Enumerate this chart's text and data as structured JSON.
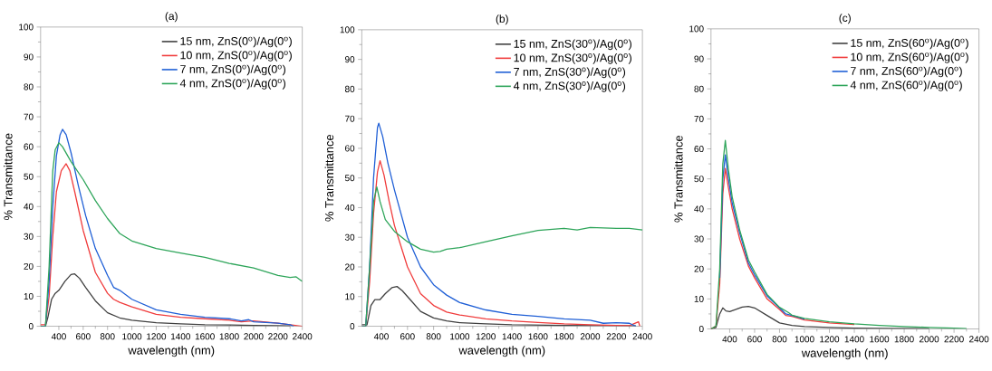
{
  "chart_data": [
    {
      "type": "line",
      "title": "(a)",
      "xlabel": "wavelength (nm)",
      "ylabel": "% Transmittance",
      "xlim": [
        250,
        2400
      ],
      "ylim": [
        0,
        100
      ],
      "xticks": [
        400,
        600,
        800,
        1000,
        1200,
        1400,
        1600,
        1800,
        2000,
        2200,
        2400
      ],
      "yticks": [
        0,
        10,
        20,
        30,
        40,
        50,
        60,
        70,
        80,
        90,
        100
      ],
      "legend": "top right",
      "series": [
        {
          "name": "15 nm, ZnS(0$^{o}$)/Ag(0$^{o}$)",
          "color": "#404040",
          "x": [
            250,
            290,
            310,
            340,
            370,
            400,
            450,
            500,
            530,
            570,
            620,
            700,
            800,
            900,
            1000,
            1200,
            1400,
            1600,
            1800,
            2000,
            2200,
            2300
          ],
          "values": [
            0,
            0,
            3,
            9,
            11,
            12,
            15,
            17.3,
            17.5,
            16,
            13,
            8.5,
            4.5,
            2.8,
            2,
            1.2,
            0.8,
            0.5,
            0.4,
            0.3,
            0.2,
            0.1
          ]
        },
        {
          "name": "10 nm, ZnS(0$^{o}$)/Ag(0$^{o}$)",
          "color": "#f03c3c",
          "x": [
            250,
            290,
            320,
            350,
            380,
            420,
            460,
            490,
            530,
            600,
            700,
            800,
            850,
            900,
            1000,
            1200,
            1400,
            1600,
            1800,
            1900,
            2000,
            2200,
            2300,
            2400
          ],
          "values": [
            0.5,
            0.5,
            10,
            30,
            45,
            52,
            54.3,
            52,
            45,
            32,
            18,
            11,
            9,
            8,
            6.5,
            4,
            3,
            2.5,
            2,
            1.5,
            1.8,
            1,
            0.5,
            0
          ]
        },
        {
          "name": "7 nm, ZnS(0$^{o}$)/Ag(0$^{o}$)",
          "color": "#1f5fd6",
          "x": [
            250,
            290,
            320,
            350,
            380,
            410,
            430,
            460,
            500,
            560,
            620,
            700,
            800,
            850,
            900,
            1000,
            1200,
            1400,
            1600,
            1800,
            1900,
            1960,
            2000,
            2200,
            2300,
            2330
          ],
          "values": [
            0,
            0,
            15,
            40,
            57,
            64,
            65.8,
            64,
            58,
            47,
            37,
            26,
            17,
            13,
            12,
            9,
            5.5,
            4,
            3,
            2.5,
            1.8,
            2.2,
            1.5,
            1,
            0.5,
            0
          ]
        },
        {
          "name": "4 nm, ZnS(0$^{o}$)/Ag(0$^{o}$)",
          "color": "#2ea55a",
          "x": [
            250,
            290,
            320,
            350,
            370,
            400,
            430,
            500,
            600,
            700,
            800,
            900,
            1000,
            1200,
            1400,
            1600,
            1800,
            2000,
            2200,
            2300,
            2350,
            2400
          ],
          "values": [
            0,
            0,
            20,
            52,
            59,
            61.3,
            60,
            55,
            49,
            42,
            36,
            31,
            28.5,
            26,
            24.5,
            23,
            21,
            19.5,
            17,
            16.3,
            16.5,
            15
          ]
        }
      ]
    },
    {
      "type": "line",
      "title": "(b)",
      "xlabel": "wavelength (nm)",
      "ylabel": "% Transmittance",
      "xlim": [
        250,
        2400
      ],
      "ylim": [
        0,
        100
      ],
      "xticks": [
        400,
        600,
        800,
        1000,
        1200,
        1400,
        1600,
        1800,
        2000,
        2200,
        2400
      ],
      "yticks": [
        0,
        10,
        20,
        30,
        40,
        50,
        60,
        70,
        80,
        90,
        100
      ],
      "legend": "top right",
      "series": [
        {
          "name": "15 nm, ZnS(30$^{o}$)/Ag(0$^{o}$)",
          "color": "#404040",
          "x": [
            250,
            290,
            320,
            350,
            390,
            430,
            480,
            520,
            560,
            620,
            700,
            800,
            900,
            1000,
            1200,
            1400,
            1800,
            2200,
            2350
          ],
          "values": [
            0.5,
            0.5,
            7,
            9,
            9,
            11,
            13,
            13.4,
            12,
            9,
            5,
            2.8,
            1.8,
            1.2,
            0.8,
            0.5,
            0.3,
            0.2,
            0.1
          ]
        },
        {
          "name": "10 nm, ZnS(30$^{o}$)/Ag(0$^{o}$)",
          "color": "#f03c3c",
          "x": [
            250,
            280,
            310,
            340,
            370,
            390,
            420,
            460,
            500,
            600,
            700,
            800,
            900,
            1000,
            1200,
            1400,
            1600,
            1800,
            2000,
            2200,
            2300,
            2370,
            2380
          ],
          "values": [
            0,
            0,
            15,
            38,
            52,
            55.8,
            51,
            42,
            34,
            20,
            11,
            7,
            4.8,
            3.8,
            2.5,
            1.8,
            1.3,
            0.8,
            0.5,
            0.3,
            0.2,
            1.5,
            0
          ]
        },
        {
          "name": "7 nm, ZnS(30$^{o}$)/Ag(0$^{o}$)",
          "color": "#1f5fd6",
          "x": [
            250,
            280,
            310,
            340,
            370,
            380,
            410,
            450,
            500,
            600,
            700,
            800,
            900,
            1000,
            1200,
            1400,
            1600,
            1800,
            2000,
            2100,
            2200,
            2300,
            2350
          ],
          "values": [
            0,
            0,
            20,
            50,
            67,
            68.5,
            64,
            55,
            46,
            30,
            20,
            14,
            10.5,
            8,
            5.5,
            4,
            3.3,
            2.5,
            2,
            1,
            1.2,
            1,
            0
          ]
        },
        {
          "name": "4 nm, ZnS(30$^{o}$)/Ag(0$^{o}$)",
          "color": "#2ea55a",
          "x": [
            250,
            280,
            310,
            340,
            365,
            390,
            430,
            500,
            600,
            700,
            800,
            850,
            900,
            1000,
            1200,
            1400,
            1600,
            1800,
            1900,
            2000,
            2200,
            2300,
            2400
          ],
          "values": [
            0,
            0,
            20,
            42,
            47,
            42,
            36,
            32,
            28.5,
            26,
            25,
            25.2,
            26,
            26.5,
            28.5,
            30.5,
            32.3,
            33,
            32.5,
            33.3,
            33,
            33,
            32.5
          ]
        }
      ]
    },
    {
      "type": "line",
      "title": "(c)",
      "xlabel": "wavelength (nm)",
      "ylabel": "% Transmittance",
      "xlim": [
        250,
        2400
      ],
      "ylim": [
        0,
        100
      ],
      "xticks": [
        400,
        600,
        800,
        1000,
        1200,
        1400,
        1600,
        1800,
        2000,
        2200,
        2400
      ],
      "yticks": [
        0,
        10,
        20,
        30,
        40,
        50,
        60,
        70,
        80,
        90,
        100
      ],
      "legend": "top right",
      "series": [
        {
          "name": "15 nm, ZnS(60$^{o}$)/Ag(0$^{o}$)",
          "color": "#404040",
          "x": [
            250,
            290,
            320,
            345,
            370,
            400,
            450,
            500,
            550,
            600,
            700,
            800,
            900,
            1000,
            1200,
            1400,
            1600,
            2000
          ],
          "values": [
            0,
            0.5,
            5,
            7,
            6,
            5.8,
            6.5,
            7.3,
            7.5,
            7,
            4.5,
            2,
            1.2,
            0.8,
            0.5,
            0.3,
            0.2,
            0.1
          ]
        },
        {
          "name": "10 nm, ZnS(60$^{o}$)/Ag(0$^{o}$)",
          "color": "#f03c3c",
          "x": [
            250,
            290,
            320,
            345,
            365,
            390,
            420,
            480,
            550,
            600,
            700,
            800,
            850,
            900,
            1000,
            1200,
            1400
          ],
          "values": [
            0,
            1,
            15,
            45,
            53.5,
            47,
            40,
            30,
            21,
            17,
            10,
            6.5,
            4.5,
            4.2,
            3,
            2,
            1.5
          ]
        },
        {
          "name": "7 nm, ZnS(60$^{o}$)/Ag(0$^{o}$)",
          "color": "#1f5fd6",
          "x": [
            320,
            345,
            365,
            390,
            420,
            480,
            550,
            600,
            700,
            800,
            850,
            900,
            1000
          ],
          "values": [
            17,
            50,
            58,
            50,
            42,
            32,
            22,
            18,
            11,
            7,
            5,
            4.5,
            3.3
          ]
        },
        {
          "name": "4 nm, ZnS(60$^{o}$)/Ag(0$^{o}$)",
          "color": "#2ea55a",
          "x": [
            250,
            290,
            320,
            345,
            365,
            390,
            420,
            480,
            550,
            600,
            700,
            800,
            870,
            900,
            1000,
            1200,
            1400,
            1600,
            1800,
            2000,
            2200,
            2300
          ],
          "values": [
            0,
            1,
            20,
            55,
            62.8,
            53,
            44,
            33,
            23,
            19,
            11.5,
            7.2,
            5.5,
            4.6,
            3.5,
            2.4,
            1.7,
            1.2,
            0.8,
            0.5,
            0.3,
            0.1
          ]
        }
      ]
    }
  ]
}
